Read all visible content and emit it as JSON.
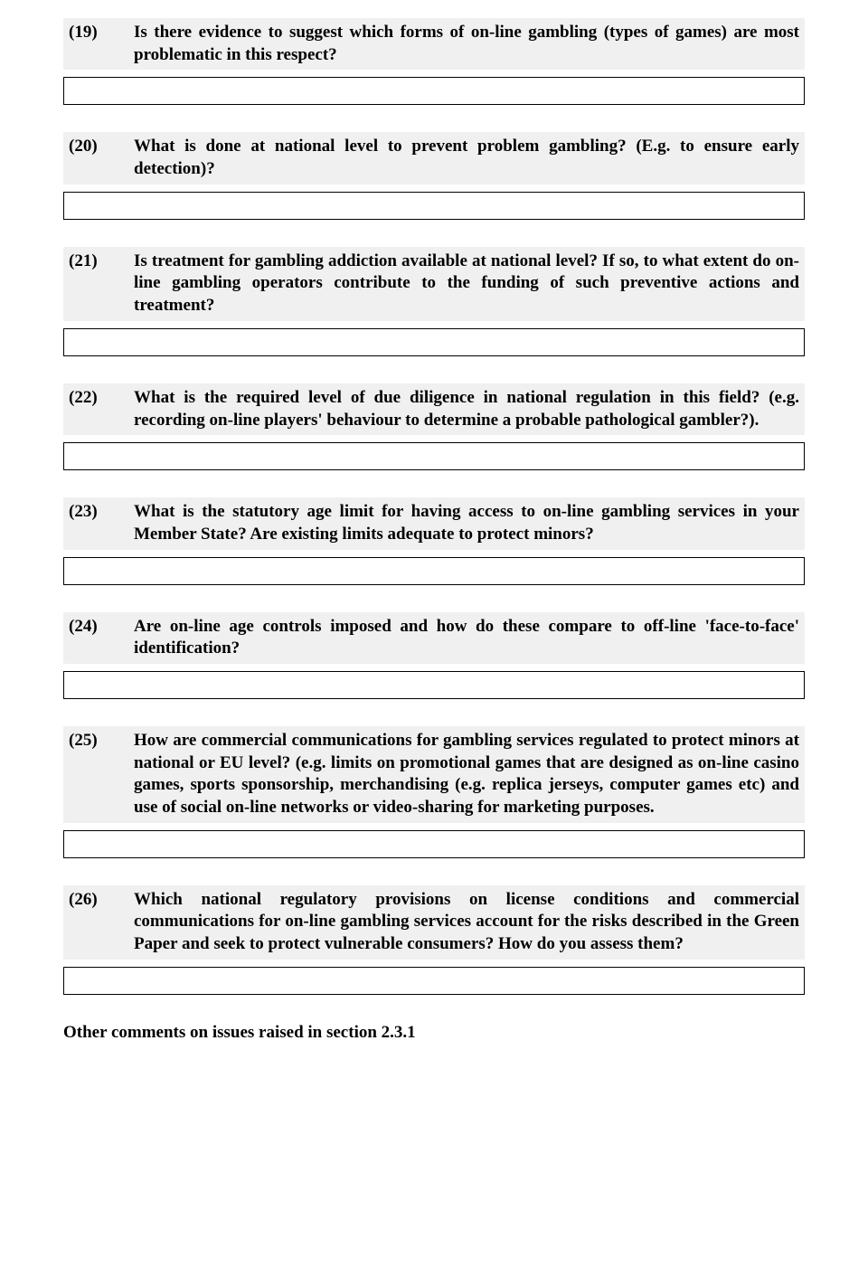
{
  "questions": [
    {
      "num": "(19)",
      "text": "Is there evidence to suggest which forms of on-line gambling (types of games) are most problematic in this respect?"
    },
    {
      "num": "(20)",
      "text": "What is done at national level to prevent problem gambling? (E.g. to ensure early detection)?"
    },
    {
      "num": "(21)",
      "text": "Is treatment for gambling addiction available at national level? If so, to what extent do on-line gambling operators contribute to the funding of such preventive actions and treatment?"
    },
    {
      "num": "(22)",
      "text": "What is the required level of due diligence in national regulation in this field? (e.g. recording on-line players' behaviour to determine a probable pathological gambler?)."
    },
    {
      "num": "(23)",
      "text": "What is the statutory age limit for having access to on-line gambling services in your Member State? Are existing limits adequate to protect minors?"
    },
    {
      "num": "(24)",
      "text": "Are on-line age controls imposed and how do these compare to off-line 'face-to-face' identification?"
    },
    {
      "num": "(25)",
      "text": "How are commercial communications for gambling services regulated to protect minors at national or EU level? (e.g. limits on promotional games that are designed as on-line casino games, sports sponsorship, merchandising (e.g. replica jerseys, computer games etc) and use of social on-line networks or video-sharing for marketing purposes."
    },
    {
      "num": "(26)",
      "text": "Which national regulatory provisions on license conditions and commercial communications for on-line gambling services account for the risks described in the Green Paper and seek to protect vulnerable consumers? How do you assess them?"
    }
  ],
  "footer": "Other comments on issues raised in section 2.3.1"
}
